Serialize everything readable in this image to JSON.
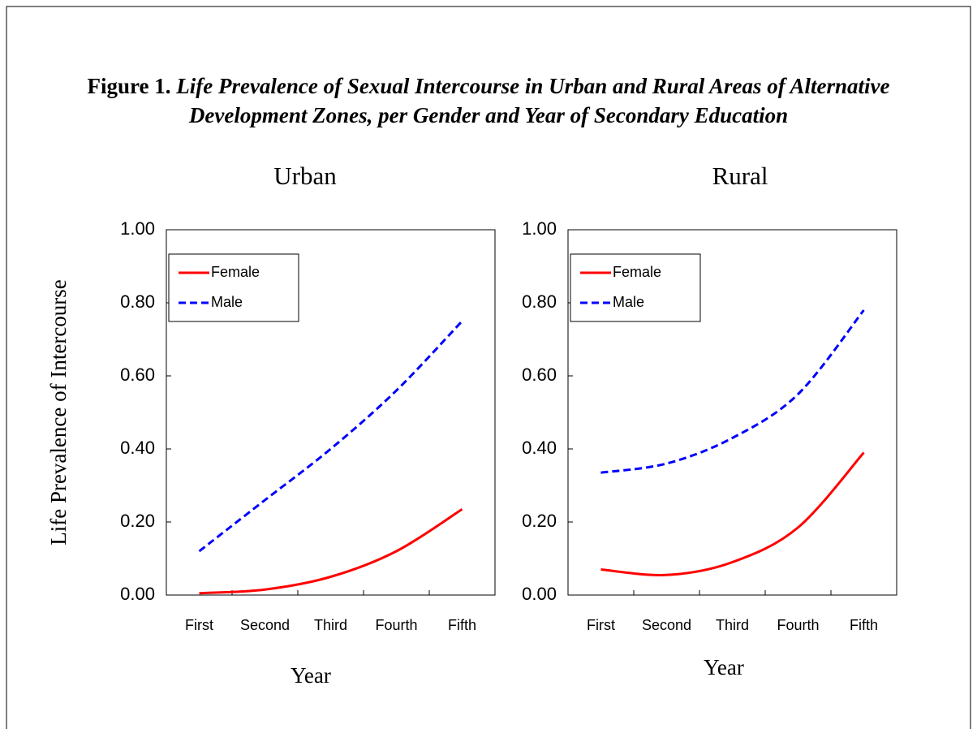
{
  "figure_label": "Figure 1.",
  "title": "Life Prevalence of Sexual Intercourse in Urban and Rural Areas of Alternative Development Zones, per Gender and Year of Secondary Education",
  "chart_data": [
    {
      "type": "line",
      "title": "Urban",
      "x_label": "Year",
      "y_label": "Life Prevalence of Intercourse",
      "categories": [
        "First",
        "Second",
        "Third",
        "Fourth",
        "Fifth"
      ],
      "series": [
        {
          "name": "Female",
          "color": "#ff0000",
          "dash": false,
          "values": [
            0.005,
            0.015,
            0.05,
            0.12,
            0.235
          ]
        },
        {
          "name": "Male",
          "color": "#0000ff",
          "dash": true,
          "values": [
            0.12,
            0.26,
            0.4,
            0.56,
            0.75
          ]
        }
      ],
      "ylim": [
        0,
        1
      ],
      "yticks": [
        {
          "value": 0,
          "label": "0.00"
        },
        {
          "value": 0.2,
          "label": "0.20"
        },
        {
          "value": 0.4,
          "label": "0.40"
        },
        {
          "value": 0.6,
          "label": "0.60"
        },
        {
          "value": 0.8,
          "label": "0.80"
        },
        {
          "value": 1,
          "label": "1.00"
        }
      ],
      "legend": "upper left"
    },
    {
      "type": "line",
      "title": "Rural",
      "x_label": "Year",
      "categories": [
        "First",
        "Second",
        "Third",
        "Fourth",
        "Fifth"
      ],
      "series": [
        {
          "name": "Female",
          "color": "#ff0000",
          "dash": false,
          "values": [
            0.07,
            0.055,
            0.09,
            0.185,
            0.39
          ]
        },
        {
          "name": "Male",
          "color": "#0000ff",
          "dash": true,
          "values": [
            0.335,
            0.36,
            0.43,
            0.55,
            0.78
          ]
        }
      ],
      "ylim": [
        0,
        1
      ],
      "yticks": [
        {
          "value": 0,
          "label": "0.00"
        },
        {
          "value": 0.2,
          "label": "0.20"
        },
        {
          "value": 0.4,
          "label": "0.40"
        },
        {
          "value": 0.6,
          "label": "0.60"
        },
        {
          "value": 0.8,
          "label": "0.80"
        },
        {
          "value": 1,
          "label": "1.00"
        }
      ],
      "legend": "upper left"
    }
  ]
}
